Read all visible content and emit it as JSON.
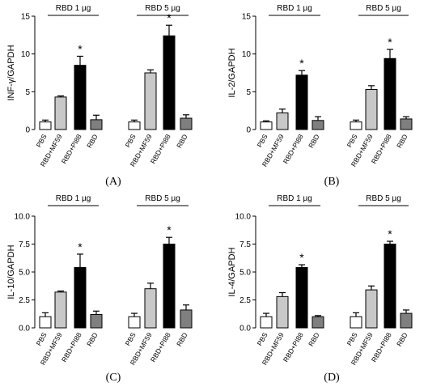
{
  "figure": {
    "background": "#ffffff",
    "colors": {
      "PBS": "#ffffff",
      "RBD+MF59": "#c8c8c8",
      "RBD+PI88": "#000000",
      "RBD": "#7f7f7f",
      "stroke": "#000000"
    }
  },
  "chart_data": [
    {
      "type": "bar",
      "panel_label": "(A)",
      "ylabel": "INF-γ/GAPDH",
      "ylim": [
        0,
        15
      ],
      "yticks": [
        "0",
        "5",
        "10",
        "15"
      ],
      "groups": [
        {
          "label": "RBD 1 µg",
          "categories": [
            "PBS",
            "RBD+MF59",
            "RBD+PI88",
            "RBD"
          ],
          "values": [
            1.0,
            4.3,
            8.5,
            1.3
          ],
          "errors": [
            0.25,
            0.15,
            1.2,
            0.6
          ],
          "significant": [
            false,
            false,
            true,
            false
          ]
        },
        {
          "label": "RBD 5 µg",
          "categories": [
            "PBS",
            "RBD+MF59",
            "RBD+PI88",
            "RBD"
          ],
          "values": [
            1.0,
            7.5,
            12.4,
            1.5
          ],
          "errors": [
            0.25,
            0.4,
            1.4,
            0.45
          ],
          "significant": [
            false,
            false,
            true,
            false
          ]
        }
      ],
      "significance_marker": "*"
    },
    {
      "type": "bar",
      "panel_label": "(B)",
      "ylabel": "IL-2/GAPDH",
      "ylim": [
        0,
        15
      ],
      "yticks": [
        "0",
        "5",
        "10",
        "15"
      ],
      "groups": [
        {
          "label": "RBD 1 µg",
          "categories": [
            "PBS",
            "RBD+MF59",
            "RBD+PI88",
            "RBD"
          ],
          "values": [
            1.0,
            2.2,
            7.2,
            1.2
          ],
          "errors": [
            0.15,
            0.5,
            0.6,
            0.5
          ],
          "significant": [
            false,
            false,
            true,
            false
          ]
        },
        {
          "label": "RBD 5 µg",
          "categories": [
            "PBS",
            "RBD+MF59",
            "RBD+PI88",
            "RBD"
          ],
          "values": [
            1.0,
            5.3,
            9.4,
            1.4
          ],
          "errors": [
            0.25,
            0.5,
            1.2,
            0.3
          ],
          "significant": [
            false,
            false,
            true,
            false
          ]
        }
      ],
      "significance_marker": "*"
    },
    {
      "type": "bar",
      "panel_label": "(C)",
      "ylabel": "IL-10/GAPDH",
      "ylim": [
        0,
        10
      ],
      "yticks": [
        "0.0",
        "2.5",
        "5.0",
        "7.5",
        "10.0"
      ],
      "groups": [
        {
          "label": "RBD 1 µg",
          "categories": [
            "PBS",
            "RBD+MF59",
            "RBD+PI88",
            "RBD"
          ],
          "values": [
            1.0,
            3.2,
            5.4,
            1.2
          ],
          "errors": [
            0.35,
            0.1,
            1.2,
            0.3
          ],
          "significant": [
            false,
            false,
            true,
            false
          ]
        },
        {
          "label": "RBD 5 µg",
          "categories": [
            "PBS",
            "RBD+MF59",
            "RBD+PI88",
            "RBD"
          ],
          "values": [
            1.0,
            3.5,
            7.5,
            1.6
          ],
          "errors": [
            0.3,
            0.5,
            0.6,
            0.45
          ],
          "significant": [
            false,
            false,
            true,
            false
          ]
        }
      ],
      "significance_marker": "*"
    },
    {
      "type": "bar",
      "panel_label": "(D)",
      "ylabel": "IL-4/GAPDH",
      "ylim": [
        0,
        10
      ],
      "yticks": [
        "0.0",
        "2.5",
        "5.0",
        "7.5",
        "10.0"
      ],
      "groups": [
        {
          "label": "RBD 1 µg",
          "categories": [
            "PBS",
            "RBD+MF59",
            "RBD+PI88",
            "RBD"
          ],
          "values": [
            1.0,
            2.8,
            5.4,
            1.0
          ],
          "errors": [
            0.3,
            0.35,
            0.25,
            0.1
          ],
          "significant": [
            false,
            false,
            true,
            false
          ]
        },
        {
          "label": "RBD 5 µg",
          "categories": [
            "PBS",
            "RBD+MF59",
            "RBD+PI88",
            "RBD"
          ],
          "values": [
            1.0,
            3.4,
            7.5,
            1.3
          ],
          "errors": [
            0.35,
            0.35,
            0.25,
            0.3
          ],
          "significant": [
            false,
            false,
            true,
            false
          ]
        }
      ],
      "significance_marker": "*"
    }
  ]
}
